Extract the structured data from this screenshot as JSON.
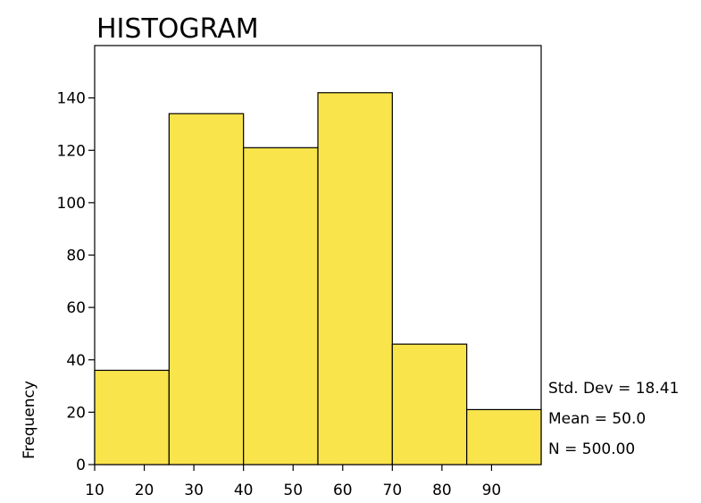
{
  "chart_data": {
    "type": "bar",
    "title": "HISTOGRAM",
    "xlabel": "",
    "ylabel": "Frequency",
    "bins": [
      {
        "start": 10,
        "end": 25,
        "value": 36
      },
      {
        "start": 25,
        "end": 40,
        "value": 134
      },
      {
        "start": 40,
        "end": 55,
        "value": 121
      },
      {
        "start": 55,
        "end": 70,
        "value": 142
      },
      {
        "start": 70,
        "end": 85,
        "value": 46
      },
      {
        "start": 85,
        "end": 100,
        "value": 21
      }
    ],
    "xlim": [
      10,
      100
    ],
    "ylim": [
      0,
      160
    ],
    "x_ticks": [
      10,
      20,
      30,
      40,
      50,
      60,
      70,
      80,
      90
    ],
    "y_ticks": [
      0,
      20,
      40,
      60,
      80,
      100,
      120,
      140
    ],
    "bar_color": "#f9e44b",
    "grid": false,
    "stats": {
      "std_dev": "Std. Dev = 18.41",
      "mean": "Mean = 50.0",
      "n": "N = 500.00"
    }
  }
}
